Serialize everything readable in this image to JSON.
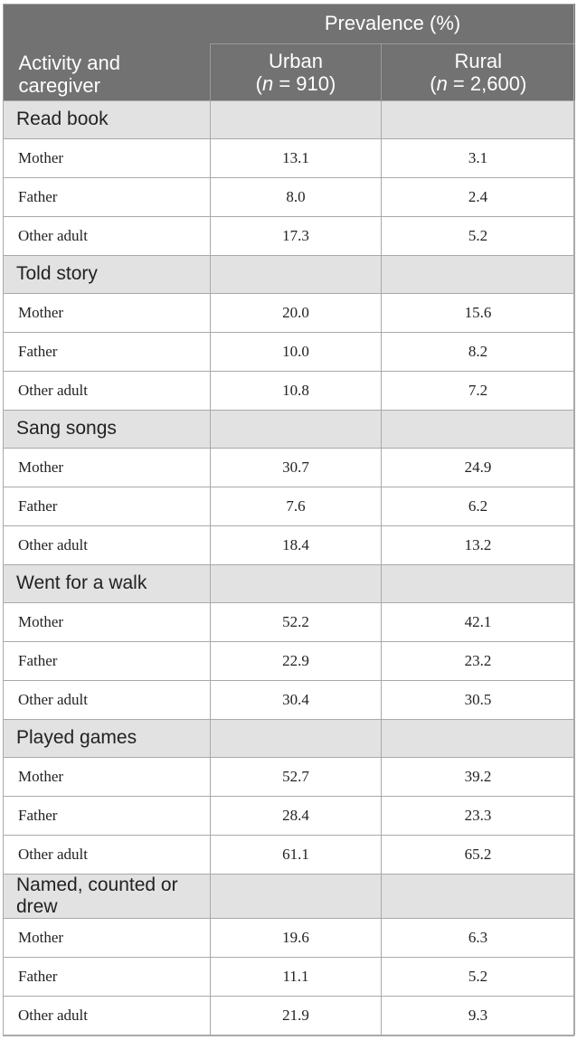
{
  "header": {
    "group_title": "Prevalence (%)",
    "row_label": [
      "Activity and",
      "caregiver"
    ],
    "columns": [
      {
        "name": "Urban",
        "n_prefix": "(",
        "n_var": "n",
        "n_value": " = 910)"
      },
      {
        "name": "Rural",
        "n_prefix": "(",
        "n_var": "n",
        "n_value": " = 2,600)"
      }
    ]
  },
  "sections": [
    {
      "title": "Read book",
      "rows": [
        {
          "caregiver": "Mother",
          "urban": "13.1",
          "rural": "3.1"
        },
        {
          "caregiver": "Father",
          "urban": "8.0",
          "rural": "2.4"
        },
        {
          "caregiver": "Other adult",
          "urban": "17.3",
          "rural": "5.2"
        }
      ]
    },
    {
      "title": "Told story",
      "rows": [
        {
          "caregiver": "Mother",
          "urban": "20.0",
          "rural": "15.6"
        },
        {
          "caregiver": "Father",
          "urban": "10.0",
          "rural": "8.2"
        },
        {
          "caregiver": "Other adult",
          "urban": "10.8",
          "rural": "7.2"
        }
      ]
    },
    {
      "title": "Sang songs",
      "rows": [
        {
          "caregiver": "Mother",
          "urban": "30.7",
          "rural": "24.9"
        },
        {
          "caregiver": "Father",
          "urban": "7.6",
          "rural": "6.2"
        },
        {
          "caregiver": "Other adult",
          "urban": "18.4",
          "rural": "13.2"
        }
      ]
    },
    {
      "title": "Went for a walk",
      "rows": [
        {
          "caregiver": "Mother",
          "urban": "52.2",
          "rural": "42.1"
        },
        {
          "caregiver": "Father",
          "urban": "22.9",
          "rural": "23.2"
        },
        {
          "caregiver": "Other adult",
          "urban": "30.4",
          "rural": "30.5"
        }
      ]
    },
    {
      "title": "Played games",
      "rows": [
        {
          "caregiver": "Mother",
          "urban": "52.7",
          "rural": "39.2"
        },
        {
          "caregiver": "Father",
          "urban": "28.4",
          "rural": "23.3"
        },
        {
          "caregiver": "Other adult",
          "urban": "61.1",
          "rural": "65.2"
        }
      ]
    },
    {
      "title": "Named, counted or drew",
      "rows": [
        {
          "caregiver": "Mother",
          "urban": "19.6",
          "rural": "6.3"
        },
        {
          "caregiver": "Father",
          "urban": "11.1",
          "rural": "5.2"
        },
        {
          "caregiver": "Other adult",
          "urban": "21.9",
          "rural": "9.3"
        }
      ]
    }
  ]
}
